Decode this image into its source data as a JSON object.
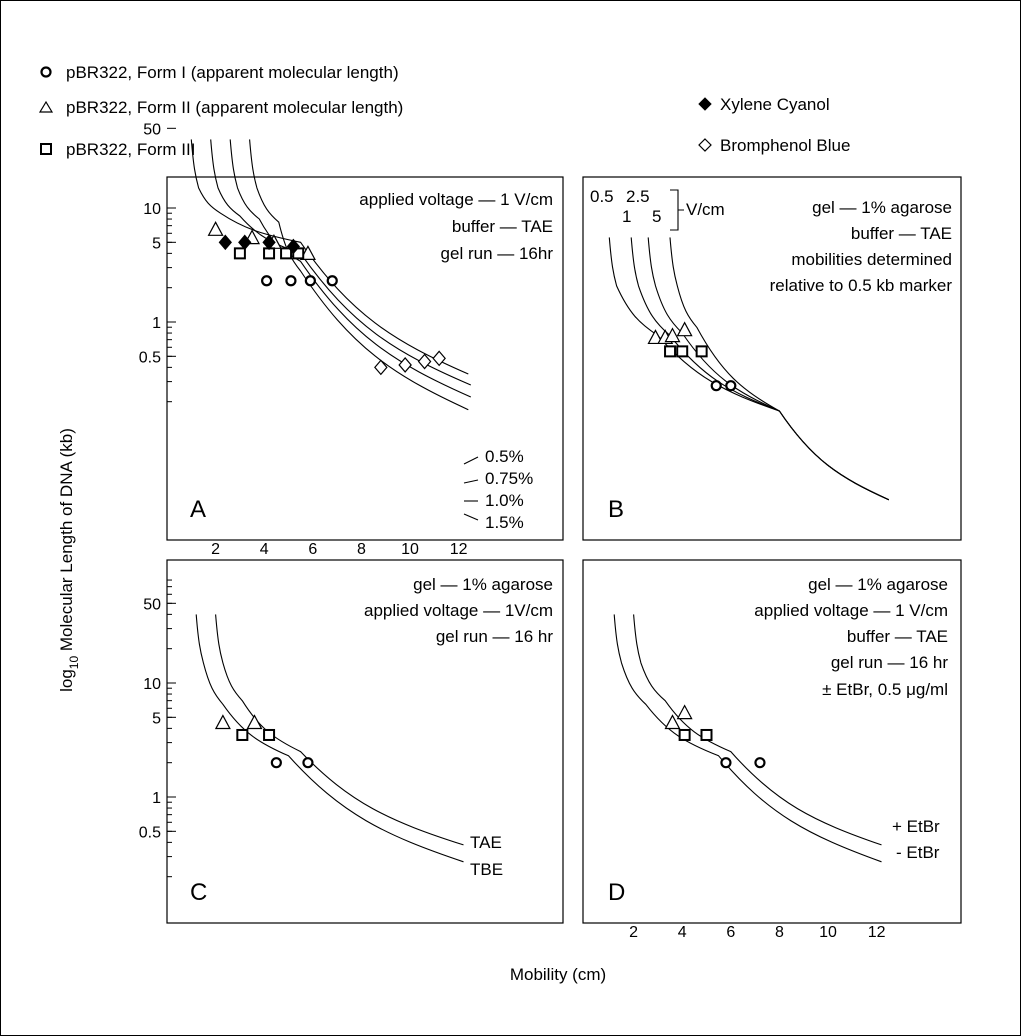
{
  "legend": {
    "form1": "pBR322, Form I (apparent molecular length)",
    "form2": "pBR322, Form II (apparent molecular length)",
    "form3": "pBR322, Form III",
    "xylene": "Xylene Cyanol",
    "bromphenol": "Bromphenol Blue"
  },
  "axes": {
    "ylabel_pre": "log",
    "ylabel_sub": "10",
    "ylabel_post": " Molecular Length of DNA (kb)",
    "xlabel": "Mobility (cm)",
    "y_ticks": [
      "50",
      "10",
      "5",
      "1",
      "0.5"
    ],
    "x_ticks": [
      "2",
      "4",
      "6",
      "8",
      "10",
      "12"
    ]
  },
  "panels": {
    "A": {
      "label": "A",
      "ann": [
        "applied voltage — 1 V/cm",
        "buffer — TAE",
        "gel run — 16hr"
      ],
      "curve_labels": [
        "0.5%",
        "0.75%",
        "1.0%",
        "1.5%"
      ]
    },
    "B": {
      "label": "B",
      "voltage_labels": [
        "0.5",
        "2.5",
        "1",
        "5"
      ],
      "voltage_unit": "V/cm",
      "ann": [
        "gel — 1% agarose",
        "buffer — TAE",
        "mobilities determined",
        "relative to 0.5 kb marker"
      ]
    },
    "C": {
      "label": "C",
      "ann": [
        "gel — 1% agarose",
        "applied voltage — 1V/cm",
        "gel run — 16 hr"
      ],
      "curve_labels": [
        "TAE",
        "TBE"
      ]
    },
    "D": {
      "label": "D",
      "ann": [
        "gel — 1% agarose",
        "applied voltage — 1 V/cm",
        "buffer — TAE",
        "gel run — 16 hr",
        "± EtBr, 0.5 μg/ml"
      ],
      "curve_labels": [
        "+ EtBr",
        "- EtBr"
      ]
    }
  },
  "chart_data": [
    {
      "type": "line",
      "panel": "A",
      "xlim": [
        0,
        16
      ],
      "ylim_kb": [
        0.15,
        90
      ],
      "yscale": "log",
      "x_ticks": [
        2,
        4,
        6,
        8,
        10,
        12
      ],
      "y_ticks": [
        50,
        10,
        5,
        1,
        0.5
      ],
      "series": [
        {
          "name": "0.5%",
          "points": [
            [
              1.0,
              40
            ],
            [
              1.3,
              15
            ],
            [
              2.2,
              9.0
            ],
            [
              5.5,
              5.0
            ],
            [
              12.4,
              0.35
            ]
          ]
        },
        {
          "name": "0.75%",
          "points": [
            [
              1.8,
              40
            ],
            [
              2.1,
              15
            ],
            [
              3.0,
              8.5
            ],
            [
              5.5,
              4.0
            ],
            [
              12.5,
              0.28
            ]
          ]
        },
        {
          "name": "1.0%",
          "points": [
            [
              2.6,
              40
            ],
            [
              2.9,
              15
            ],
            [
              3.8,
              8.0
            ],
            [
              5.5,
              3.4
            ],
            [
              12.5,
              0.22
            ]
          ]
        },
        {
          "name": "1.5%",
          "points": [
            [
              3.4,
              40
            ],
            [
              3.7,
              15
            ],
            [
              4.6,
              7.5
            ],
            [
              5.5,
              2.8
            ],
            [
              12.4,
              0.17
            ]
          ]
        }
      ],
      "markers": {
        "form1_circle": [
          [
            4.1,
            2.3
          ],
          [
            5.1,
            2.3
          ],
          [
            5.9,
            2.3
          ],
          [
            6.8,
            2.3
          ]
        ],
        "form2_triangle": [
          [
            2.0,
            6.5
          ],
          [
            3.5,
            5.5
          ],
          [
            4.4,
            5.0
          ],
          [
            5.8,
            4.0
          ]
        ],
        "form3_square": [
          [
            3.0,
            4.0
          ],
          [
            4.2,
            4.0
          ],
          [
            4.9,
            4.0
          ],
          [
            5.4,
            4.0
          ]
        ],
        "xylene_filled_diamond": [
          [
            2.4,
            5.0
          ],
          [
            3.2,
            5.0
          ],
          [
            4.2,
            5.0
          ],
          [
            5.2,
            4.6
          ]
        ],
        "bromphenol_open_diamond": [
          [
            8.8,
            0.4
          ],
          [
            9.8,
            0.42
          ],
          [
            10.6,
            0.45
          ],
          [
            11.2,
            0.48
          ]
        ]
      }
    },
    {
      "type": "line",
      "panel": "B",
      "xlim": [
        0,
        16
      ],
      "ylim_kb": [
        0.15,
        90
      ],
      "yscale": "log",
      "x_ticks": [],
      "y_ticks": [],
      "series": [
        {
          "name": "0.5 V/cm",
          "points": [
            [
              1.0,
              40
            ],
            [
              1.3,
              15
            ],
            [
              3.0,
              5.5
            ],
            [
              8.0,
              1.2
            ],
            [
              12.5,
              0.2
            ]
          ]
        },
        {
          "name": "1 V/cm",
          "points": [
            [
              1.9,
              40
            ],
            [
              2.2,
              15
            ],
            [
              3.5,
              5.5
            ],
            [
              8.0,
              1.2
            ],
            [
              12.5,
              0.2
            ]
          ]
        },
        {
          "name": "2.5 V/cm",
          "points": [
            [
              2.6,
              40
            ],
            [
              2.9,
              15
            ],
            [
              4.0,
              5.8
            ],
            [
              8.0,
              1.2
            ],
            [
              12.5,
              0.2
            ]
          ]
        },
        {
          "name": "5 V/cm",
          "points": [
            [
              3.5,
              40
            ],
            [
              3.8,
              15
            ],
            [
              4.6,
              6.5
            ],
            [
              8.0,
              1.2
            ],
            [
              12.5,
              0.2
            ]
          ]
        }
      ],
      "markers": {
        "form1_circle": [
          [
            5.4,
            2.0
          ],
          [
            6.0,
            2.0
          ]
        ],
        "form2_triangle": [
          [
            2.9,
            5.3
          ],
          [
            3.3,
            5.3
          ],
          [
            3.6,
            5.5
          ],
          [
            4.1,
            6.2
          ]
        ],
        "form3_square": [
          [
            3.5,
            4.0
          ],
          [
            4.0,
            4.0
          ],
          [
            4.8,
            4.0
          ]
        ]
      }
    },
    {
      "type": "line",
      "panel": "C",
      "xlim": [
        0,
        16
      ],
      "ylim_kb": [
        0.15,
        90
      ],
      "yscale": "log",
      "x_ticks": [],
      "y_ticks": [
        50,
        10,
        5,
        1,
        0.5
      ],
      "series": [
        {
          "name": "TAE",
          "points": [
            [
              2.0,
              40
            ],
            [
              2.3,
              15
            ],
            [
              3.1,
              7.0
            ],
            [
              5.5,
              2.5
            ],
            [
              12.2,
              0.38
            ]
          ]
        },
        {
          "name": "TBE",
          "points": [
            [
              1.2,
              40
            ],
            [
              1.5,
              15
            ],
            [
              2.3,
              6.5
            ],
            [
              5.0,
              2.3
            ],
            [
              12.2,
              0.27
            ]
          ]
        }
      ],
      "markers": {
        "form1_circle": [
          [
            4.5,
            2.0
          ],
          [
            5.8,
            2.0
          ]
        ],
        "form2_triangle": [
          [
            2.3,
            4.5
          ],
          [
            3.6,
            4.5
          ]
        ],
        "form3_square": [
          [
            3.1,
            3.5
          ],
          [
            4.2,
            3.5
          ]
        ]
      }
    },
    {
      "type": "line",
      "panel": "D",
      "xlim": [
        0,
        16
      ],
      "ylim_kb": [
        0.15,
        90
      ],
      "yscale": "log",
      "x_ticks": [
        2,
        4,
        6,
        8,
        10,
        12
      ],
      "y_ticks": [],
      "series": [
        {
          "name": "+ EtBr",
          "points": [
            [
              2.0,
              40
            ],
            [
              2.3,
              15
            ],
            [
              3.3,
              7.0
            ],
            [
              6.0,
              2.5
            ],
            [
              12.2,
              0.38
            ]
          ]
        },
        {
          "name": "- EtBr",
          "points": [
            [
              1.2,
              40
            ],
            [
              1.5,
              15
            ],
            [
              2.5,
              6.5
            ],
            [
              5.5,
              2.3
            ],
            [
              12.2,
              0.27
            ]
          ]
        }
      ],
      "markers": {
        "form1_circle": [
          [
            5.8,
            2.0
          ],
          [
            7.2,
            2.0
          ]
        ],
        "form2_triangle": [
          [
            3.6,
            4.5
          ],
          [
            4.1,
            5.5
          ]
        ],
        "form3_square": [
          [
            4.1,
            3.5
          ],
          [
            5.0,
            3.5
          ]
        ]
      }
    }
  ]
}
